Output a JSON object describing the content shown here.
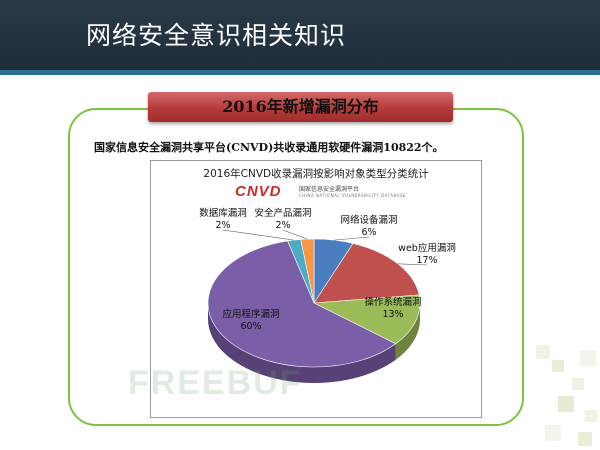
{
  "page": {
    "title": "网络安全意识相关知识"
  },
  "section": {
    "title": "2016年新增漏洞分布"
  },
  "intro": {
    "text": "国家信息安全漏洞共享平台(CNVD)共收录通用软硬件漏洞10822个。"
  },
  "chart_header": {
    "title": "2016年CNVD收录漏洞按影响对象类型分类统计",
    "logo": "CNVD",
    "logo_line1": "国家信息安全漏洞平台",
    "logo_line2": "CHINA NATIONAL VULNERABILITY DATABASE"
  },
  "watermark": {
    "text": "FREEBUF"
  },
  "chart_data": {
    "type": "pie",
    "title": "2016年CNVD收录漏洞按影响对象类型分类统计",
    "slices": [
      {
        "label": "网络设备漏洞",
        "value": 6,
        "display": "6%",
        "color": "#4a7ec0"
      },
      {
        "label": "web应用漏洞",
        "value": 17,
        "display": "17%",
        "color": "#c0504d"
      },
      {
        "label": "操作系统漏洞",
        "value": 13,
        "display": "13%",
        "color": "#9bbb59"
      },
      {
        "label": "应用程序漏洞",
        "value": 60,
        "display": "60%",
        "color": "#7b5ea8"
      },
      {
        "label": "数据库漏洞",
        "value": 2,
        "display": "2%",
        "color": "#4bacc6"
      },
      {
        "label": "安全产品漏洞",
        "value": 2,
        "display": "2%",
        "color": "#f79646"
      }
    ]
  }
}
